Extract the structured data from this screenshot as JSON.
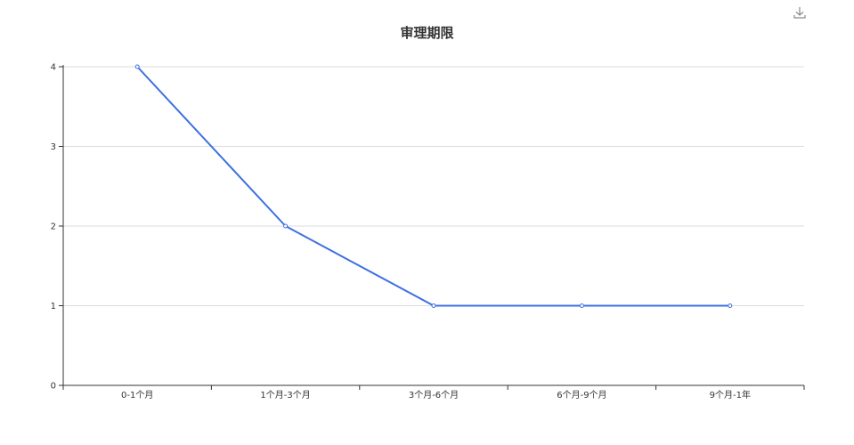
{
  "toolbar": {
    "download_icon": "download-icon"
  },
  "chart_data": {
    "type": "line",
    "title": "审理期限",
    "xlabel": "",
    "ylabel": "",
    "categories": [
      "0-1个月",
      "1个月-3个月",
      "3个月-6个月",
      "6个月-9个月",
      "9个月-1年"
    ],
    "series": [
      {
        "values": [
          4,
          2,
          1,
          1,
          1
        ]
      }
    ],
    "ylim": [
      0,
      4
    ],
    "yticks": [
      0,
      1,
      2,
      3,
      4
    ],
    "grid": true,
    "legend": "none",
    "colors": {
      "line": "#3d6fe0",
      "grid": "#dcdcdc",
      "axis": "#333333"
    }
  }
}
